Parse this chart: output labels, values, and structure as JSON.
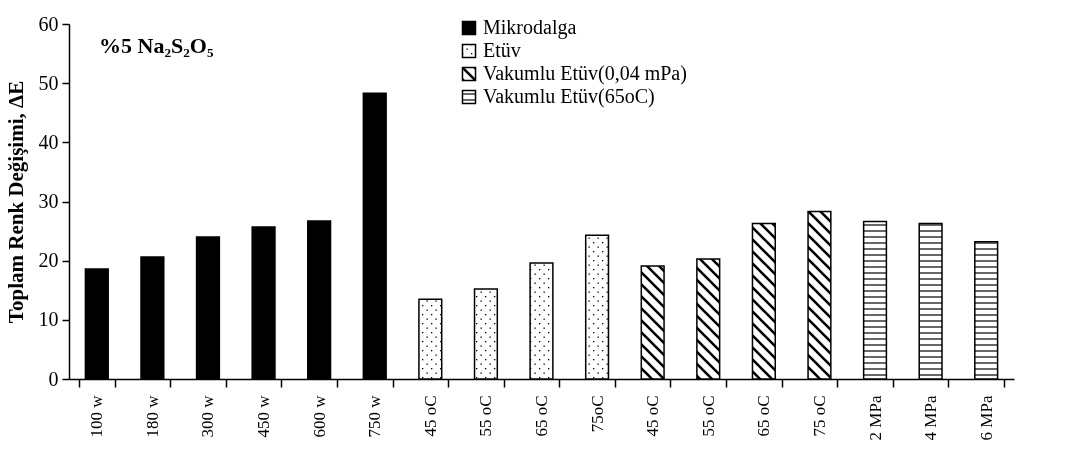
{
  "chart_data": {
    "type": "bar",
    "title": "%5 Na₂S₂O₅",
    "ylabel": "Toplam Renk Değişimi, ΔE",
    "categories": [
      "100 w",
      "180 w",
      "300 w",
      "450 w",
      "600 w",
      "750 w",
      "45 oC",
      "55 oC",
      "65 oC",
      "75oC",
      "45 oC",
      "55 oC",
      "65 oC",
      "75 oC",
      "2 MPa",
      "4 MPa",
      "6 MPa"
    ],
    "series": [
      {
        "name": "Mikrodalga",
        "color": "#000000",
        "values": [
          18.6,
          20.6,
          24.0,
          25.7,
          26.7,
          48.3,
          null,
          null,
          null,
          null,
          null,
          null,
          null,
          null,
          null,
          null,
          null
        ]
      },
      {
        "name": "Etüv",
        "color": "#000000",
        "values": [
          null,
          null,
          null,
          null,
          null,
          null,
          13.5,
          15.2,
          19.6,
          24.3,
          null,
          null,
          null,
          null,
          null,
          null,
          null
        ]
      },
      {
        "name": "Vakumlu Etüv(0,04 mPa)",
        "color": "#000000",
        "values": [
          null,
          null,
          null,
          null,
          null,
          null,
          null,
          null,
          null,
          null,
          19.1,
          20.3,
          26.3,
          28.3,
          null,
          null,
          null
        ]
      },
      {
        "name": "Vakumlu Etüv(65oC)",
        "color": "#000000",
        "values": [
          null,
          null,
          null,
          null,
          null,
          null,
          null,
          null,
          null,
          null,
          null,
          null,
          null,
          null,
          26.6,
          26.3,
          23.2
        ]
      }
    ],
    "ylim": [
      0,
      60
    ],
    "yticks": [
      0,
      10,
      20,
      30,
      40,
      50,
      60
    ],
    "grid": false,
    "legend": "top right"
  }
}
